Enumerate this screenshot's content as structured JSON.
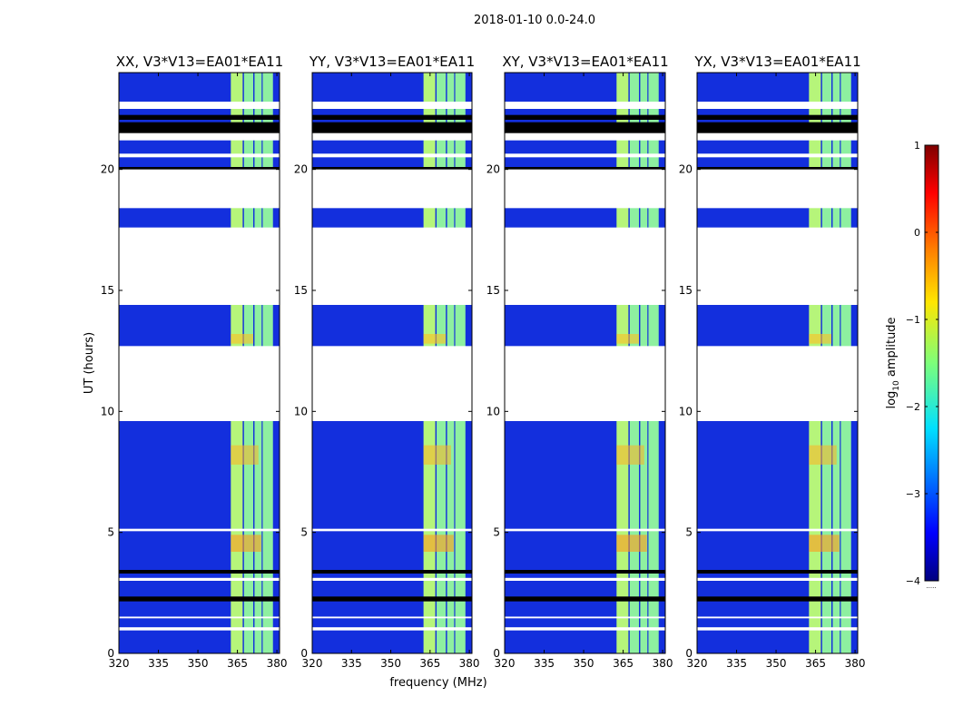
{
  "chart_data": {
    "type": "heatmap",
    "title": "2018-01-10 0.0-24.0",
    "xlabel": "frequency (MHz)",
    "ylabel": "UT (hours)",
    "xlim": [
      320,
      381
    ],
    "ylim": [
      0,
      24
    ],
    "xticks": [
      "320",
      "335",
      "350",
      "365",
      "380"
    ],
    "yticks": [
      "0",
      "5",
      "10",
      "15",
      "20"
    ],
    "panels": [
      {
        "title": "XX, V3*V13=EA01*EA11"
      },
      {
        "title": "YY, V3*V13=EA01*EA11"
      },
      {
        "title": "XY, V3*V13=EA01*EA11"
      },
      {
        "title": "YX, V3*V13=EA01*EA11"
      }
    ],
    "colorbar": {
      "label": "log10 amplitude",
      "label_prefix": "log",
      "label_sub": "10",
      "label_suffix": " amplitude",
      "range": [
        -4,
        1
      ],
      "ticks": [
        "1",
        "0",
        "−1",
        "−2",
        "−3",
        "−4"
      ],
      "footnote": "....."
    },
    "blank_hours": [
      [
        0.95,
        1.08
      ],
      [
        1.45,
        1.52
      ],
      [
        3.0,
        3.12
      ],
      [
        5.05,
        5.15
      ],
      [
        9.6,
        12.7
      ],
      [
        14.4,
        17.6
      ],
      [
        18.4,
        20.0
      ],
      [
        20.5,
        20.65
      ],
      [
        21.2,
        21.5
      ],
      [
        22.5,
        22.8
      ]
    ],
    "flag_hours": [
      [
        2.15,
        2.35
      ],
      [
        3.3,
        3.45
      ],
      [
        19.7,
        20.1
      ],
      [
        21.45,
        21.95
      ],
      [
        22.05,
        22.25
      ]
    ],
    "band_mhz": [
      [
        362.5,
        367.0
      ],
      [
        367.5,
        371.0
      ],
      [
        371.5,
        374.2
      ],
      [
        374.6,
        378.5
      ]
    ]
  }
}
